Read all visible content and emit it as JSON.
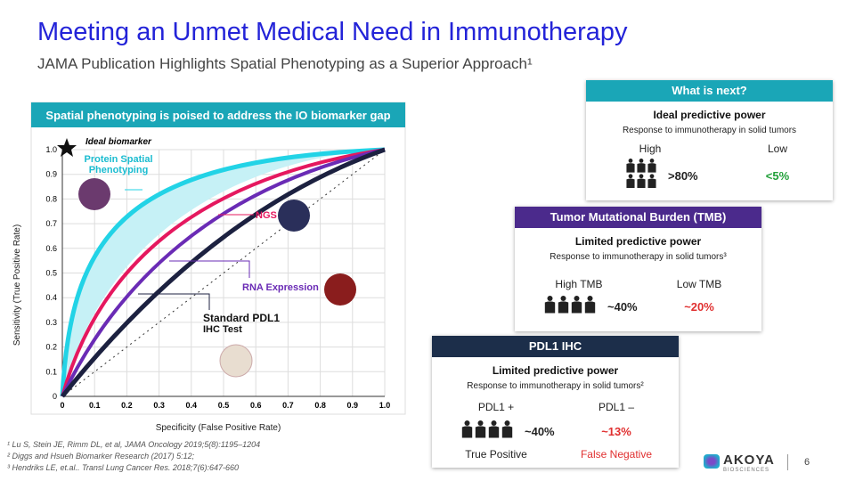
{
  "header": {
    "title": "Meeting an Unmet Medical Need in Immunotherapy",
    "subtitle": "JAMA Publication Highlights Spatial Phenotyping as a Superior Approach¹"
  },
  "chart": {
    "title": "Spatial phenotyping is poised to address the IO biomarker gap",
    "y_axis_label": "Sensitivity (True Positive Rate)",
    "x_axis_label": "Specificity (False Positive Rate)",
    "yticks": [
      "0",
      "0.1",
      "0.2",
      "0.3",
      "0.4",
      "0.5",
      "0.6",
      "0.7",
      "0.8",
      "0.9",
      "1.0"
    ],
    "xticks": [
      "0",
      "0.1",
      "0.2",
      "0.3",
      "0.4",
      "0.5",
      "0.6",
      "0.7",
      "0.8",
      "0.9",
      "1.0"
    ],
    "annotations": {
      "ideal": "Ideal biomarker",
      "protein": [
        "Protein Spatial",
        "Phenotyping"
      ],
      "ngs": "NGS",
      "rna": "RNA Expression",
      "pdl1": [
        "Standard PDL1",
        "IHC Test"
      ]
    }
  },
  "cards": [
    {
      "header": "What is next?",
      "heading": "Ideal predictive power",
      "description": "Response to immunotherapy in solid tumors",
      "columns": [
        {
          "label": "High",
          "value": ">80%"
        },
        {
          "label": "Low",
          "value": "<5%"
        }
      ]
    },
    {
      "header": "Tumor Mutational Burden (TMB)",
      "heading": "Limited predictive power",
      "description": "Response to immunotherapy in solid tumors³",
      "columns": [
        {
          "label": "High TMB",
          "value": "~40%"
        },
        {
          "label": "Low TMB",
          "value": "~20%"
        }
      ]
    },
    {
      "header": "PDL1 IHC",
      "heading": "Limited predictive power",
      "description": "Response to immunotherapy in solid tumors²",
      "columns": [
        {
          "label": "PDL1 +",
          "value": "~40%",
          "caption": "True Positive"
        },
        {
          "label": "PDL1 –",
          "value": "~13%",
          "caption": "False Negative"
        }
      ]
    }
  ],
  "footnotes": [
    "¹ Lu S, Stein JE, Rimm DL, et al, JAMA Oncology 2019;5(8):1195–1204",
    "² Diggs and Hsueh Biomarker Research (2017) 5:12;",
    "³ Hendriks LE, et.al.. Transl Lung Cancer Res. 2018;7(6):647-660"
  ],
  "logo": {
    "name": "AKOYA",
    "tagline": "BIOSCIENCES"
  },
  "page_number": "6"
}
